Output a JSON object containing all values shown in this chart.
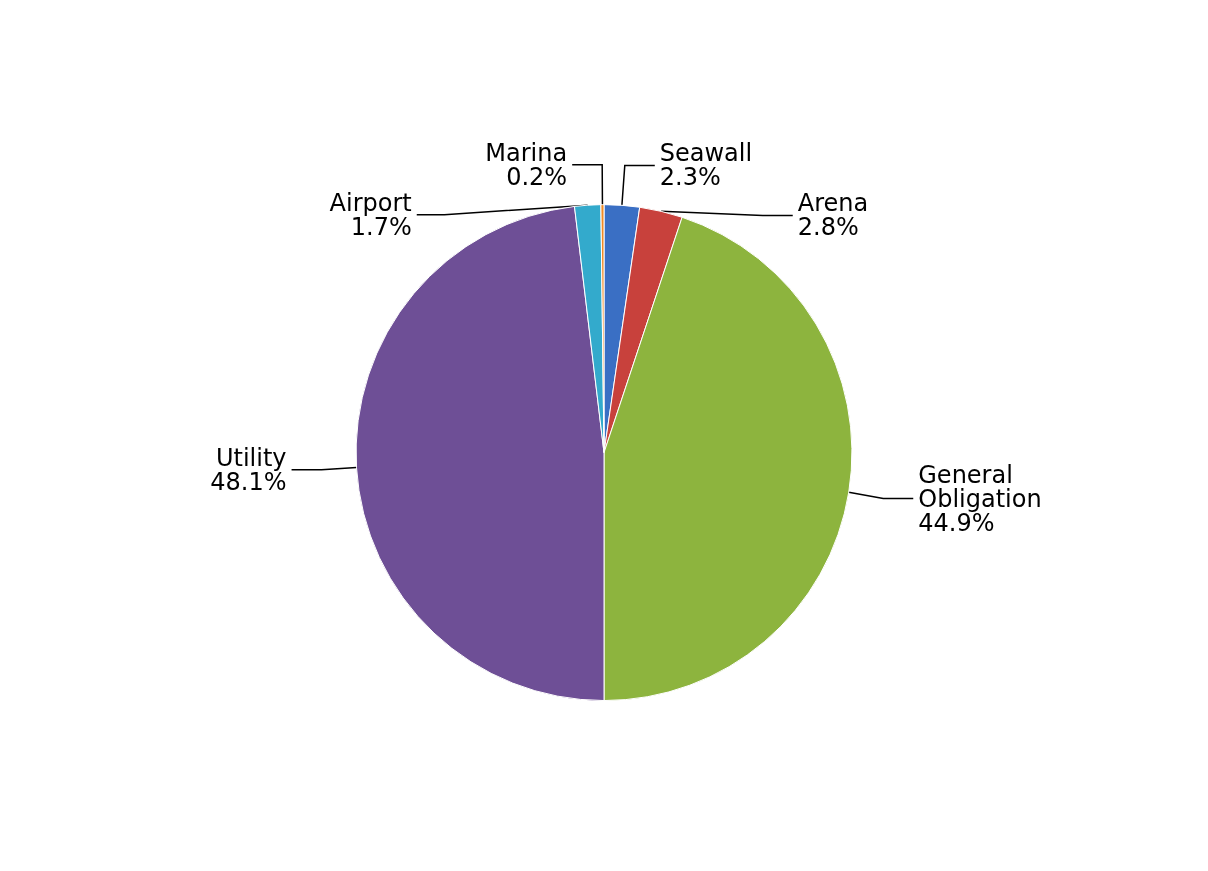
{
  "chart_data": {
    "type": "pie",
    "categories": [
      "Seawall",
      "Arena",
      "General Obligation",
      "Utility",
      "Airport",
      "Marina"
    ],
    "values": [
      2.3,
      2.8,
      44.9,
      48.1,
      1.7,
      0.2
    ],
    "value_labels": [
      "2.3%",
      "2.8%",
      "44.9%",
      "48.1%",
      "1.7%",
      "0.2%"
    ],
    "colors": [
      "#3a6fc4",
      "#c8413c",
      "#8db43e",
      "#6e4f96",
      "#33aacc",
      "#f08a24"
    ],
    "legend": false
  }
}
